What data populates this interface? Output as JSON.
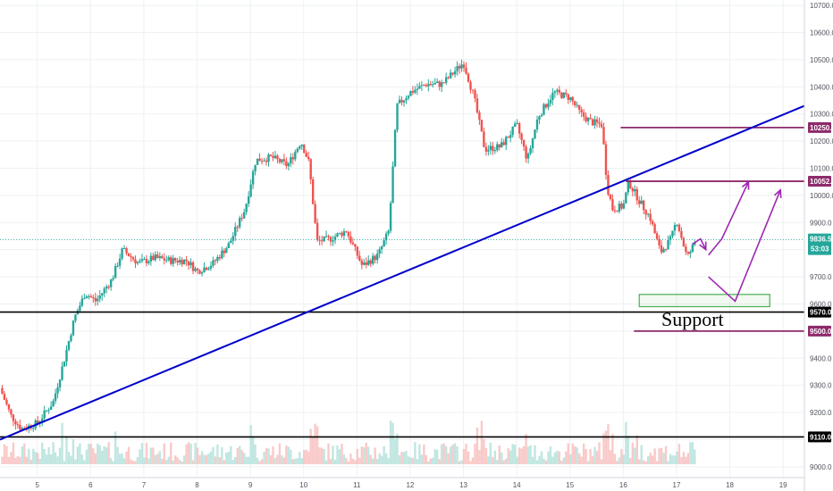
{
  "chart_data": {
    "type": "candlestick",
    "title": "",
    "xlabel": "",
    "ylabel": "",
    "y_axis": {
      "range": [
        8960,
        10720
      ],
      "ticks": [
        9000.0,
        9100.0,
        9200.0,
        9300.0,
        9400.0,
        9500.0,
        9600.0,
        9700.0,
        9800.0,
        9900.0,
        10000.0,
        10100.0,
        10200.0,
        10300.0,
        10400.0,
        10500.0,
        10600.0,
        10700.0
      ],
      "tick_labels": [
        "9000.0",
        "9100.0",
        "9200.0",
        "9300.0",
        "9400.0",
        "9500.0",
        "9600.0",
        "9700.0",
        "9800.0",
        "9900.0",
        "10000.0",
        "10100.0",
        "10200.0",
        "10300.0",
        "10400.0",
        "10500.0",
        "10600.0",
        "10700.0"
      ]
    },
    "x_axis": {
      "range": [
        4.3,
        19.4
      ],
      "ticks": [
        5,
        6,
        7,
        8,
        9,
        10,
        11,
        12,
        13,
        14,
        15,
        16,
        17,
        18,
        19
      ],
      "tick_labels": [
        "5",
        "6",
        "7",
        "8",
        "9",
        "10",
        "11",
        "12",
        "13",
        "14",
        "15",
        "16",
        "17",
        "18",
        "19"
      ]
    },
    "grid": true,
    "colors": {
      "up": "#26a69a",
      "down": "#ef5350",
      "trendline": "#0000cc",
      "level": "#8e2a6b",
      "arrow": "#9c27b0",
      "support_box": "#4caf50"
    },
    "price_path": [
      [
        4.3,
        9290
      ],
      [
        4.5,
        9190
      ],
      [
        4.7,
        9140
      ],
      [
        5.0,
        9160
      ],
      [
        5.3,
        9240
      ],
      [
        5.5,
        9390
      ],
      [
        5.7,
        9550
      ],
      [
        5.9,
        9640
      ],
      [
        6.1,
        9610
      ],
      [
        6.4,
        9690
      ],
      [
        6.6,
        9800
      ],
      [
        6.9,
        9750
      ],
      [
        7.2,
        9770
      ],
      [
        7.5,
        9760
      ],
      [
        7.8,
        9760
      ],
      [
        8.0,
        9720
      ],
      [
        8.3,
        9750
      ],
      [
        8.6,
        9820
      ],
      [
        8.9,
        9950
      ],
      [
        9.1,
        10130
      ],
      [
        9.4,
        10140
      ],
      [
        9.7,
        10110
      ],
      [
        9.95,
        10200
      ],
      [
        10.1,
        10120
      ],
      [
        10.25,
        9830
      ],
      [
        10.5,
        9840
      ],
      [
        10.8,
        9870
      ],
      [
        11.1,
        9740
      ],
      [
        11.4,
        9780
      ],
      [
        11.6,
        9870
      ],
      [
        11.75,
        10330
      ],
      [
        12.0,
        10380
      ],
      [
        12.3,
        10410
      ],
      [
        12.6,
        10410
      ],
      [
        12.8,
        10450
      ],
      [
        13.0,
        10490
      ],
      [
        13.2,
        10360
      ],
      [
        13.4,
        10170
      ],
      [
        13.7,
        10180
      ],
      [
        14.0,
        10260
      ],
      [
        14.2,
        10130
      ],
      [
        14.4,
        10290
      ],
      [
        14.7,
        10380
      ],
      [
        15.0,
        10360
      ],
      [
        15.2,
        10300
      ],
      [
        15.4,
        10270
      ],
      [
        15.6,
        10260
      ],
      [
        15.7,
        10030
      ],
      [
        15.8,
        9950
      ],
      [
        16.0,
        9960
      ],
      [
        16.1,
        10050
      ],
      [
        16.3,
        9980
      ],
      [
        16.5,
        9920
      ],
      [
        16.7,
        9790
      ],
      [
        16.9,
        9840
      ],
      [
        17.0,
        9910
      ],
      [
        17.2,
        9770
      ],
      [
        17.35,
        9830
      ]
    ],
    "trendline": {
      "from": [
        4.3,
        9100
      ],
      "to": [
        19.4,
        10330
      ]
    },
    "horizontal_levels": [
      {
        "label": "10250.0",
        "value": 10250,
        "x_from": 15.95,
        "x_to": 19.4,
        "color": "#8e2a6b"
      },
      {
        "label": "10052.0",
        "value": 10052,
        "x_from": 16.05,
        "x_to": 19.4,
        "color": "#8e2a6b"
      },
      {
        "label": "9570.0",
        "value": 9570,
        "x_from": 4.3,
        "x_to": 19.4,
        "color": "#000000"
      },
      {
        "label": "9500.0",
        "value": 9500,
        "x_from": 16.2,
        "x_to": 19.4,
        "color": "#8e2a6b"
      },
      {
        "label": "9110.0",
        "value": 9110,
        "x_from": 4.3,
        "x_to": 19.4,
        "color": "#000000"
      }
    ],
    "current_price": {
      "label": "9836.5",
      "value": 9836.5,
      "countdown": "53:03"
    },
    "support_box": {
      "x": [
        16.3,
        18.75
      ],
      "y": [
        9590,
        9635
      ]
    },
    "annotations": [
      {
        "text": "Support",
        "x": 17.3,
        "y": 9520
      }
    ],
    "arrows": [
      [
        [
          17.3,
          9820
        ],
        [
          17.45,
          9840
        ],
        [
          17.55,
          9800
        ]
      ],
      [
        [
          17.6,
          9780
        ],
        [
          17.85,
          9840
        ],
        [
          18.35,
          10050
        ]
      ],
      [
        [
          17.6,
          9700
        ],
        [
          18.1,
          9610
        ],
        [
          18.95,
          10020
        ]
      ]
    ]
  }
}
